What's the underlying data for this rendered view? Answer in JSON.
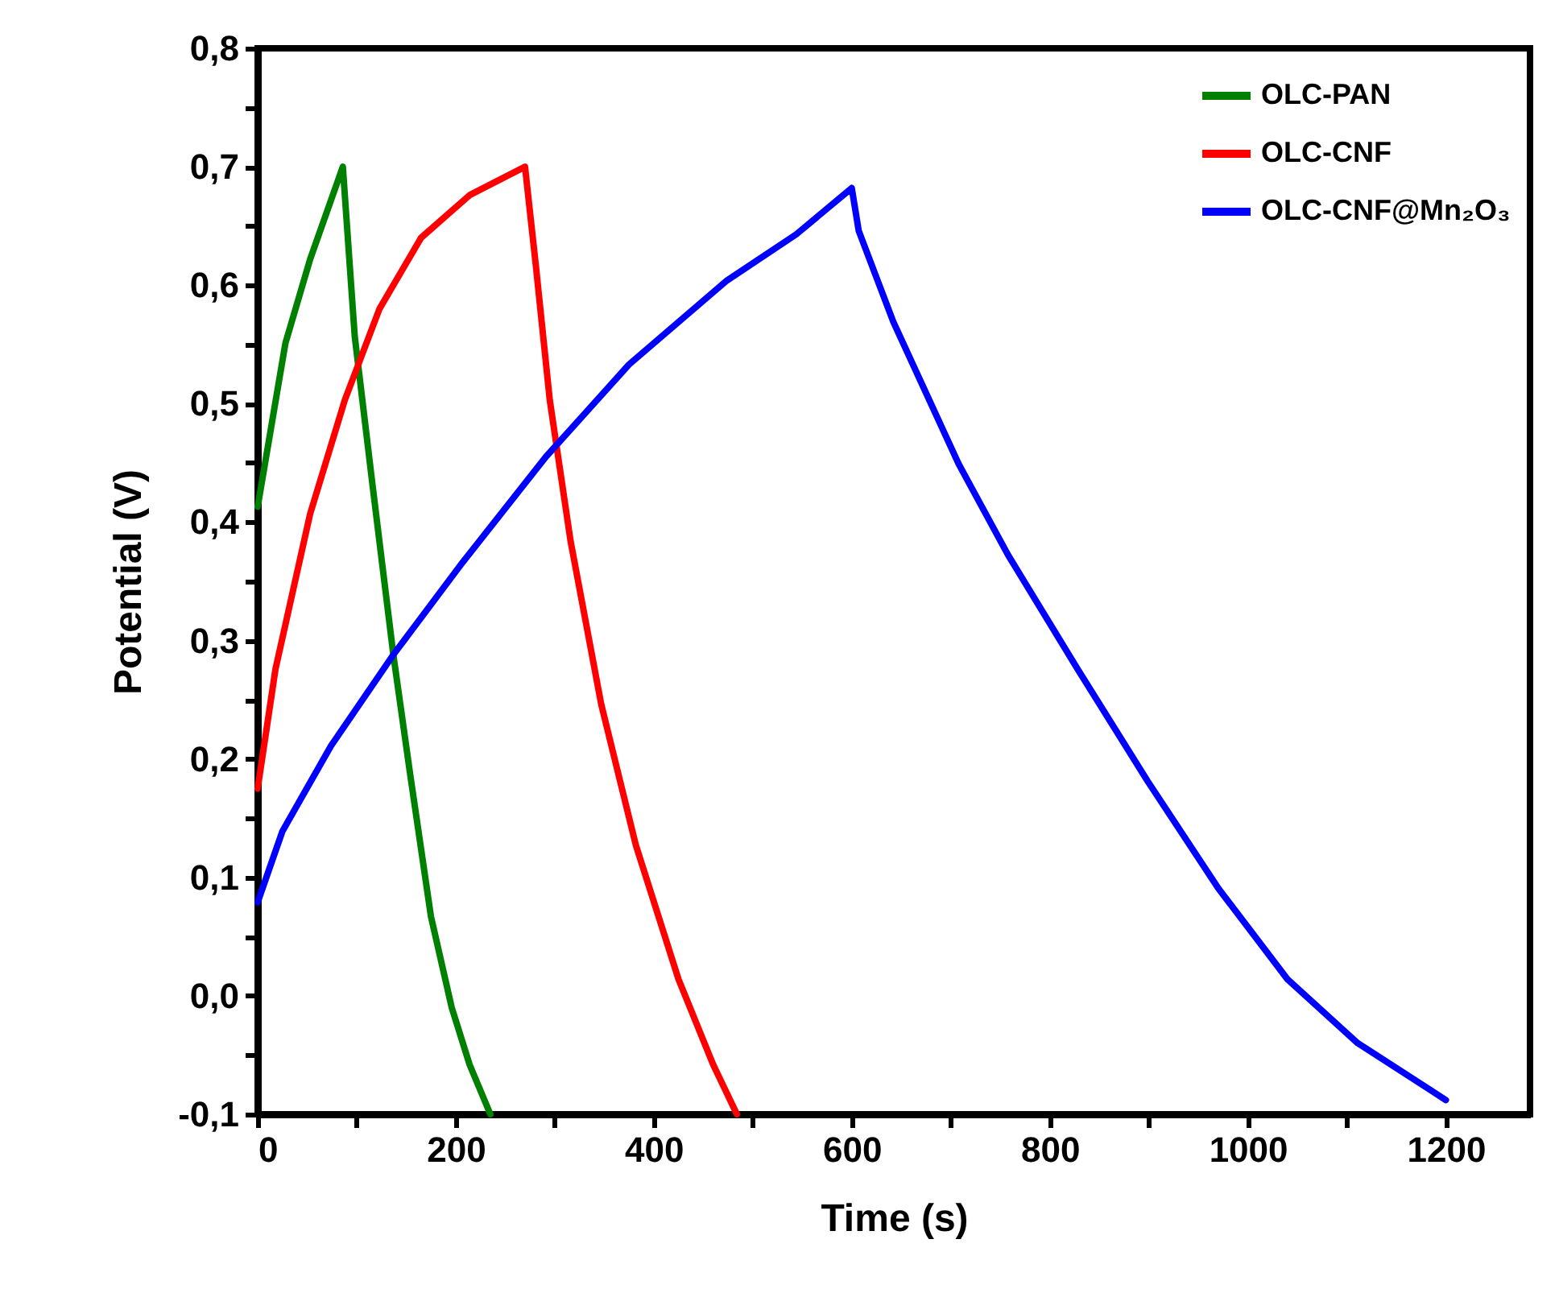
{
  "chart_data": {
    "type": "line",
    "xlabel": "Time (s)",
    "ylabel": "Potential (V)",
    "xlim": [
      0,
      1285
    ],
    "ylim": [
      -0.1,
      0.8
    ],
    "xticks": [
      0,
      {
        "value": 100,
        "label": null
      },
      200,
      {
        "value": 300,
        "label": null
      },
      400,
      {
        "value": 500,
        "label": null
      },
      600,
      {
        "value": 700,
        "label": null
      },
      800,
      {
        "value": 900,
        "label": null
      },
      1000,
      {
        "value": 1100,
        "label": null
      },
      1200
    ],
    "yticks": [
      {
        "value": -0.1,
        "label": "-0,1"
      },
      {
        "value": -0.05,
        "label": null
      },
      {
        "value": 0,
        "label": "0,0"
      },
      {
        "value": 0.05,
        "label": null
      },
      {
        "value": 0.1,
        "label": "0,1"
      },
      {
        "value": 0.15,
        "label": null
      },
      {
        "value": 0.2,
        "label": "0,2"
      },
      {
        "value": 0.25,
        "label": null
      },
      {
        "value": 0.3,
        "label": "0,3"
      },
      {
        "value": 0.35,
        "label": null
      },
      {
        "value": 0.4,
        "label": "0,4"
      },
      {
        "value": 0.45,
        "label": null
      },
      {
        "value": 0.5,
        "label": "0,5"
      },
      {
        "value": 0.55,
        "label": null
      },
      {
        "value": 0.6,
        "label": "0,6"
      },
      {
        "value": 0.65,
        "label": null
      },
      {
        "value": 0.7,
        "label": "0,7"
      },
      {
        "value": 0.75,
        "label": null
      },
      {
        "value": 0.8,
        "label": "0,8"
      }
    ],
    "grid": false,
    "legend": "top right",
    "marker": "none",
    "line_style": "solid",
    "series": [
      {
        "name": "OLC-PAN",
        "color": "#008000",
        "x": [
          0,
          28,
          53,
          86,
          98,
          116,
          137,
          154,
          175,
          196,
          214,
          235
        ],
        "values": [
          0.413,
          0.551,
          0.622,
          0.7,
          0.557,
          0.431,
          0.288,
          0.187,
          0.067,
          -0.01,
          -0.058,
          -0.1
        ]
      },
      {
        "name": "OLC-CNF",
        "color": "#ff0000",
        "x": [
          0,
          18,
          53,
          88,
          123,
          165,
          214,
          270,
          281,
          295,
          316,
          347,
          382,
          425,
          460,
          484
        ],
        "values": [
          0.175,
          0.276,
          0.407,
          0.503,
          0.58,
          0.64,
          0.676,
          0.7,
          0.616,
          0.503,
          0.384,
          0.246,
          0.127,
          0.014,
          -0.058,
          -0.1
        ]
      },
      {
        "name": "OLC-CNF@Mn₂O₃",
        "color": "#0000ff",
        "x": [
          0,
          25,
          74,
          137,
          207,
          291,
          375,
          474,
          544,
          600,
          607,
          642,
          708,
          758,
          828,
          899,
          970,
          1040,
          1111,
          1200
        ],
        "values": [
          0.079,
          0.139,
          0.211,
          0.288,
          0.366,
          0.455,
          0.533,
          0.604,
          0.643,
          0.682,
          0.646,
          0.569,
          0.449,
          0.372,
          0.276,
          0.181,
          0.091,
          0.014,
          -0.04,
          -0.088
        ]
      }
    ]
  }
}
